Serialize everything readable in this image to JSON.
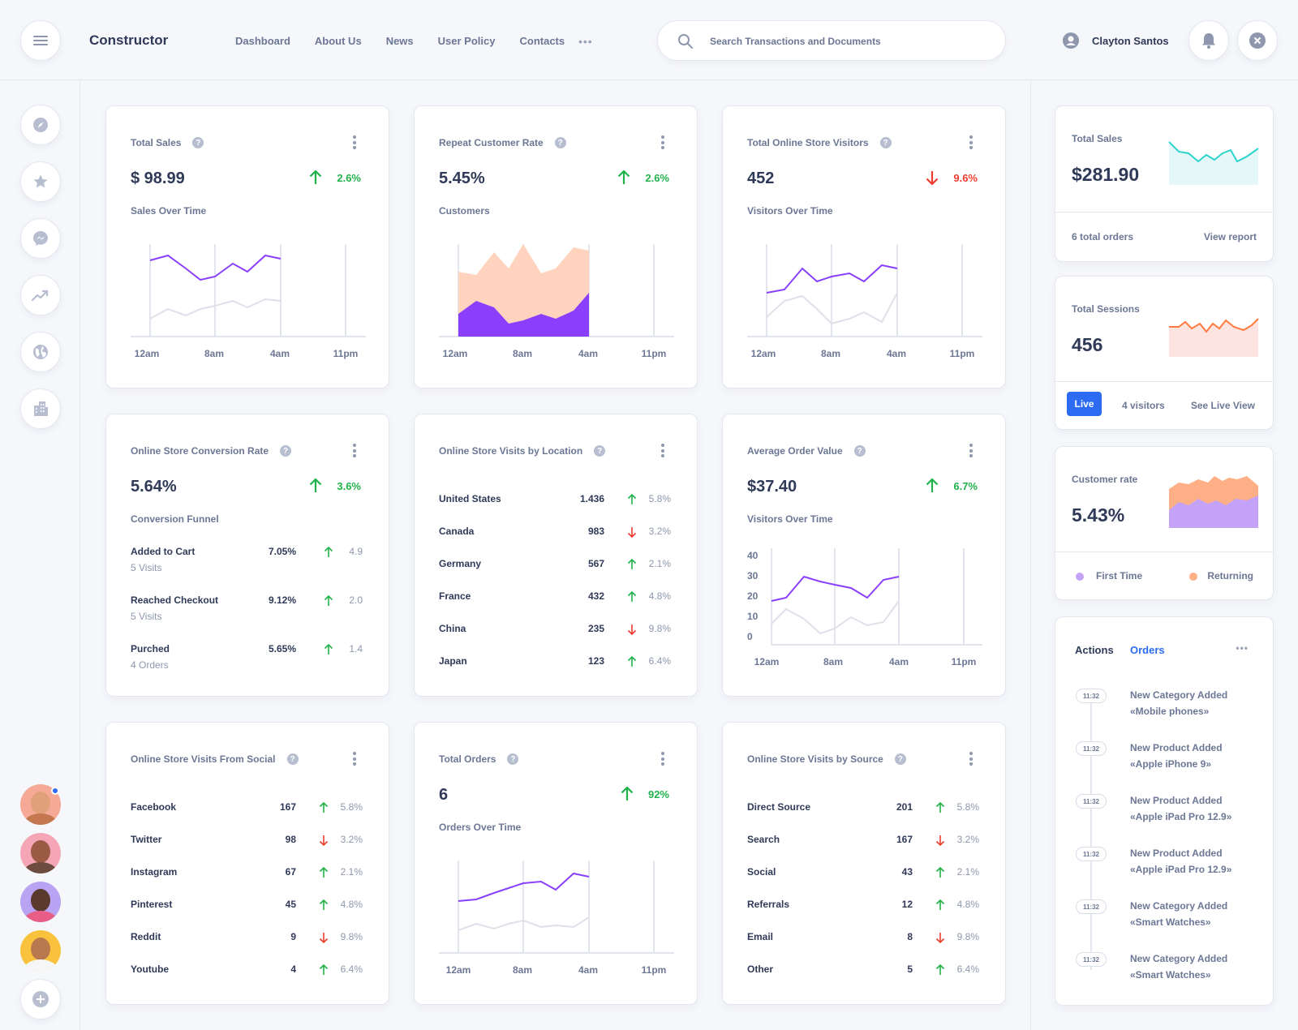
{
  "header": {
    "brand": "Constructor",
    "nav": [
      "Dashboard",
      "About Us",
      "News",
      "User Policy",
      "Contacts"
    ],
    "more": "•••",
    "search_placeholder": "Search Transactions and Documents",
    "user_name": "Clayton Santos"
  },
  "cards": {
    "total_sales": {
      "title": "Total Sales",
      "value": "$ 98.99",
      "trend": "2.6%",
      "trend_dir": "up",
      "sub": "Sales Over Time",
      "ticks": [
        "12am",
        "8am",
        "4am",
        "11pm"
      ]
    },
    "repeat_customer": {
      "title": "Repeat Customer Rate",
      "value": "5.45%",
      "trend": "2.6%",
      "trend_dir": "up",
      "sub": "Customers",
      "ticks": [
        "12am",
        "8am",
        "4am",
        "11pm"
      ]
    },
    "store_visitors": {
      "title": "Total Online Store Visitors",
      "value": "452",
      "trend": "9.6%",
      "trend_dir": "down",
      "sub": "Visitors Over Time",
      "ticks": [
        "12am",
        "8am",
        "4am",
        "11pm"
      ]
    },
    "conversion": {
      "title": "Online Store Conversion Rate",
      "value": "5.64%",
      "trend": "3.6%",
      "trend_dir": "up",
      "sub": "Conversion Funnel",
      "rows": [
        {
          "label": "Added to Cart",
          "sub": "5 Visits",
          "value": "7.05%",
          "dir": "up",
          "change": "4.9"
        },
        {
          "label": "Reached Checkout",
          "sub": "5 Visits",
          "value": "9.12%",
          "dir": "up",
          "change": "2.0"
        },
        {
          "label": "Purched",
          "sub": "4 Orders",
          "value": "5.65%",
          "dir": "up",
          "change": "1.4"
        }
      ]
    },
    "by_location": {
      "title": "Online Store Visits by Location",
      "rows": [
        {
          "label": "United States",
          "value": "1.436",
          "dir": "up",
          "change": "5.8%"
        },
        {
          "label": "Canada",
          "value": "983",
          "dir": "down",
          "change": "3.2%"
        },
        {
          "label": "Germany",
          "value": "567",
          "dir": "up",
          "change": "2.1%"
        },
        {
          "label": "France",
          "value": "432",
          "dir": "up",
          "change": "4.8%"
        },
        {
          "label": "China",
          "value": "235",
          "dir": "down",
          "change": "9.8%"
        },
        {
          "label": "Japan",
          "value": "123",
          "dir": "up",
          "change": "6.4%"
        }
      ]
    },
    "avg_order": {
      "title": "Average Order Value",
      "value": "$37.40",
      "trend": "6.7%",
      "trend_dir": "up",
      "sub": "Visitors Over Time",
      "ticks": [
        "12am",
        "8am",
        "4am",
        "11pm"
      ],
      "yticks": [
        "40",
        "30",
        "20",
        "10",
        "0"
      ]
    },
    "from_social": {
      "title": "Online Store Visits From Social",
      "rows": [
        {
          "label": "Facebook",
          "value": "167",
          "dir": "up",
          "change": "5.8%"
        },
        {
          "label": "Twitter",
          "value": "98",
          "dir": "down",
          "change": "3.2%"
        },
        {
          "label": "Instagram",
          "value": "67",
          "dir": "up",
          "change": "2.1%"
        },
        {
          "label": "Pinterest",
          "value": "45",
          "dir": "up",
          "change": "4.8%"
        },
        {
          "label": "Reddit",
          "value": "9",
          "dir": "down",
          "change": "9.8%"
        },
        {
          "label": "Youtube",
          "value": "4",
          "dir": "up",
          "change": "6.4%"
        }
      ]
    },
    "total_orders": {
      "title": "Total Orders",
      "value": "6",
      "trend": "92%",
      "trend_dir": "up",
      "sub": "Orders Over Time",
      "ticks": [
        "12am",
        "8am",
        "4am",
        "11pm"
      ]
    },
    "by_source": {
      "title": "Online Store Visits by Source",
      "rows": [
        {
          "label": "Direct Source",
          "value": "201",
          "dir": "up",
          "change": "5.8%"
        },
        {
          "label": "Search",
          "value": "167",
          "dir": "down",
          "change": "3.2%"
        },
        {
          "label": "Social",
          "value": "43",
          "dir": "up",
          "change": "2.1%"
        },
        {
          "label": "Referrals",
          "value": "12",
          "dir": "up",
          "change": "4.8%"
        },
        {
          "label": "Email",
          "value": "8",
          "dir": "down",
          "change": "9.8%"
        },
        {
          "label": "Other",
          "value": "5",
          "dir": "up",
          "change": "6.4%"
        }
      ]
    }
  },
  "right": {
    "sales": {
      "title": "Total Sales",
      "value": "$281.90",
      "orders": "6 total orders",
      "link": "View report"
    },
    "sessions": {
      "title": "Total Sessions",
      "value": "456",
      "live": "Live",
      "visitors": "4 visitors",
      "link": "See Live View"
    },
    "customer": {
      "title": "Customer rate",
      "value": "5.43%",
      "legend_first": "First Time",
      "legend_returning": "Returning"
    },
    "activity": {
      "tab_actions": "Actions",
      "tab_orders": "Orders",
      "more": "•••",
      "items": [
        {
          "time": "11:32",
          "title": "New Category Added",
          "detail": "«Mobile phones»"
        },
        {
          "time": "11:32",
          "title": "New Product Added",
          "detail": "«Apple iPhone 9»"
        },
        {
          "time": "11:32",
          "title": "New Product Added",
          "detail": "«Apple iPad Pro 12.9»"
        },
        {
          "time": "11:32",
          "title": "New Product Added",
          "detail": "«Apple iPad Pro 12.9»"
        },
        {
          "time": "11:32",
          "title": "New Category Added",
          "detail": "«Smart Watches»"
        },
        {
          "time": "11:32",
          "title": "New Category Added",
          "detail": "«Smart Watches»"
        }
      ]
    }
  },
  "colors": {
    "accent": "#2d6bf2",
    "purple": "#8a3ffc",
    "peach": "#ffd3bd",
    "up": "#21b24b",
    "down": "#f03c2e",
    "teal": "#2cd4cc",
    "orange": "#ff7a3d"
  },
  "icons": {
    "header": [
      "menu-icon",
      "search-icon",
      "user-icon",
      "bell-icon",
      "close-icon"
    ],
    "sidebar": [
      "compass-icon",
      "star-icon",
      "messenger-icon",
      "trending-icon",
      "globe-icon",
      "building-icon",
      "plus-icon"
    ]
  }
}
